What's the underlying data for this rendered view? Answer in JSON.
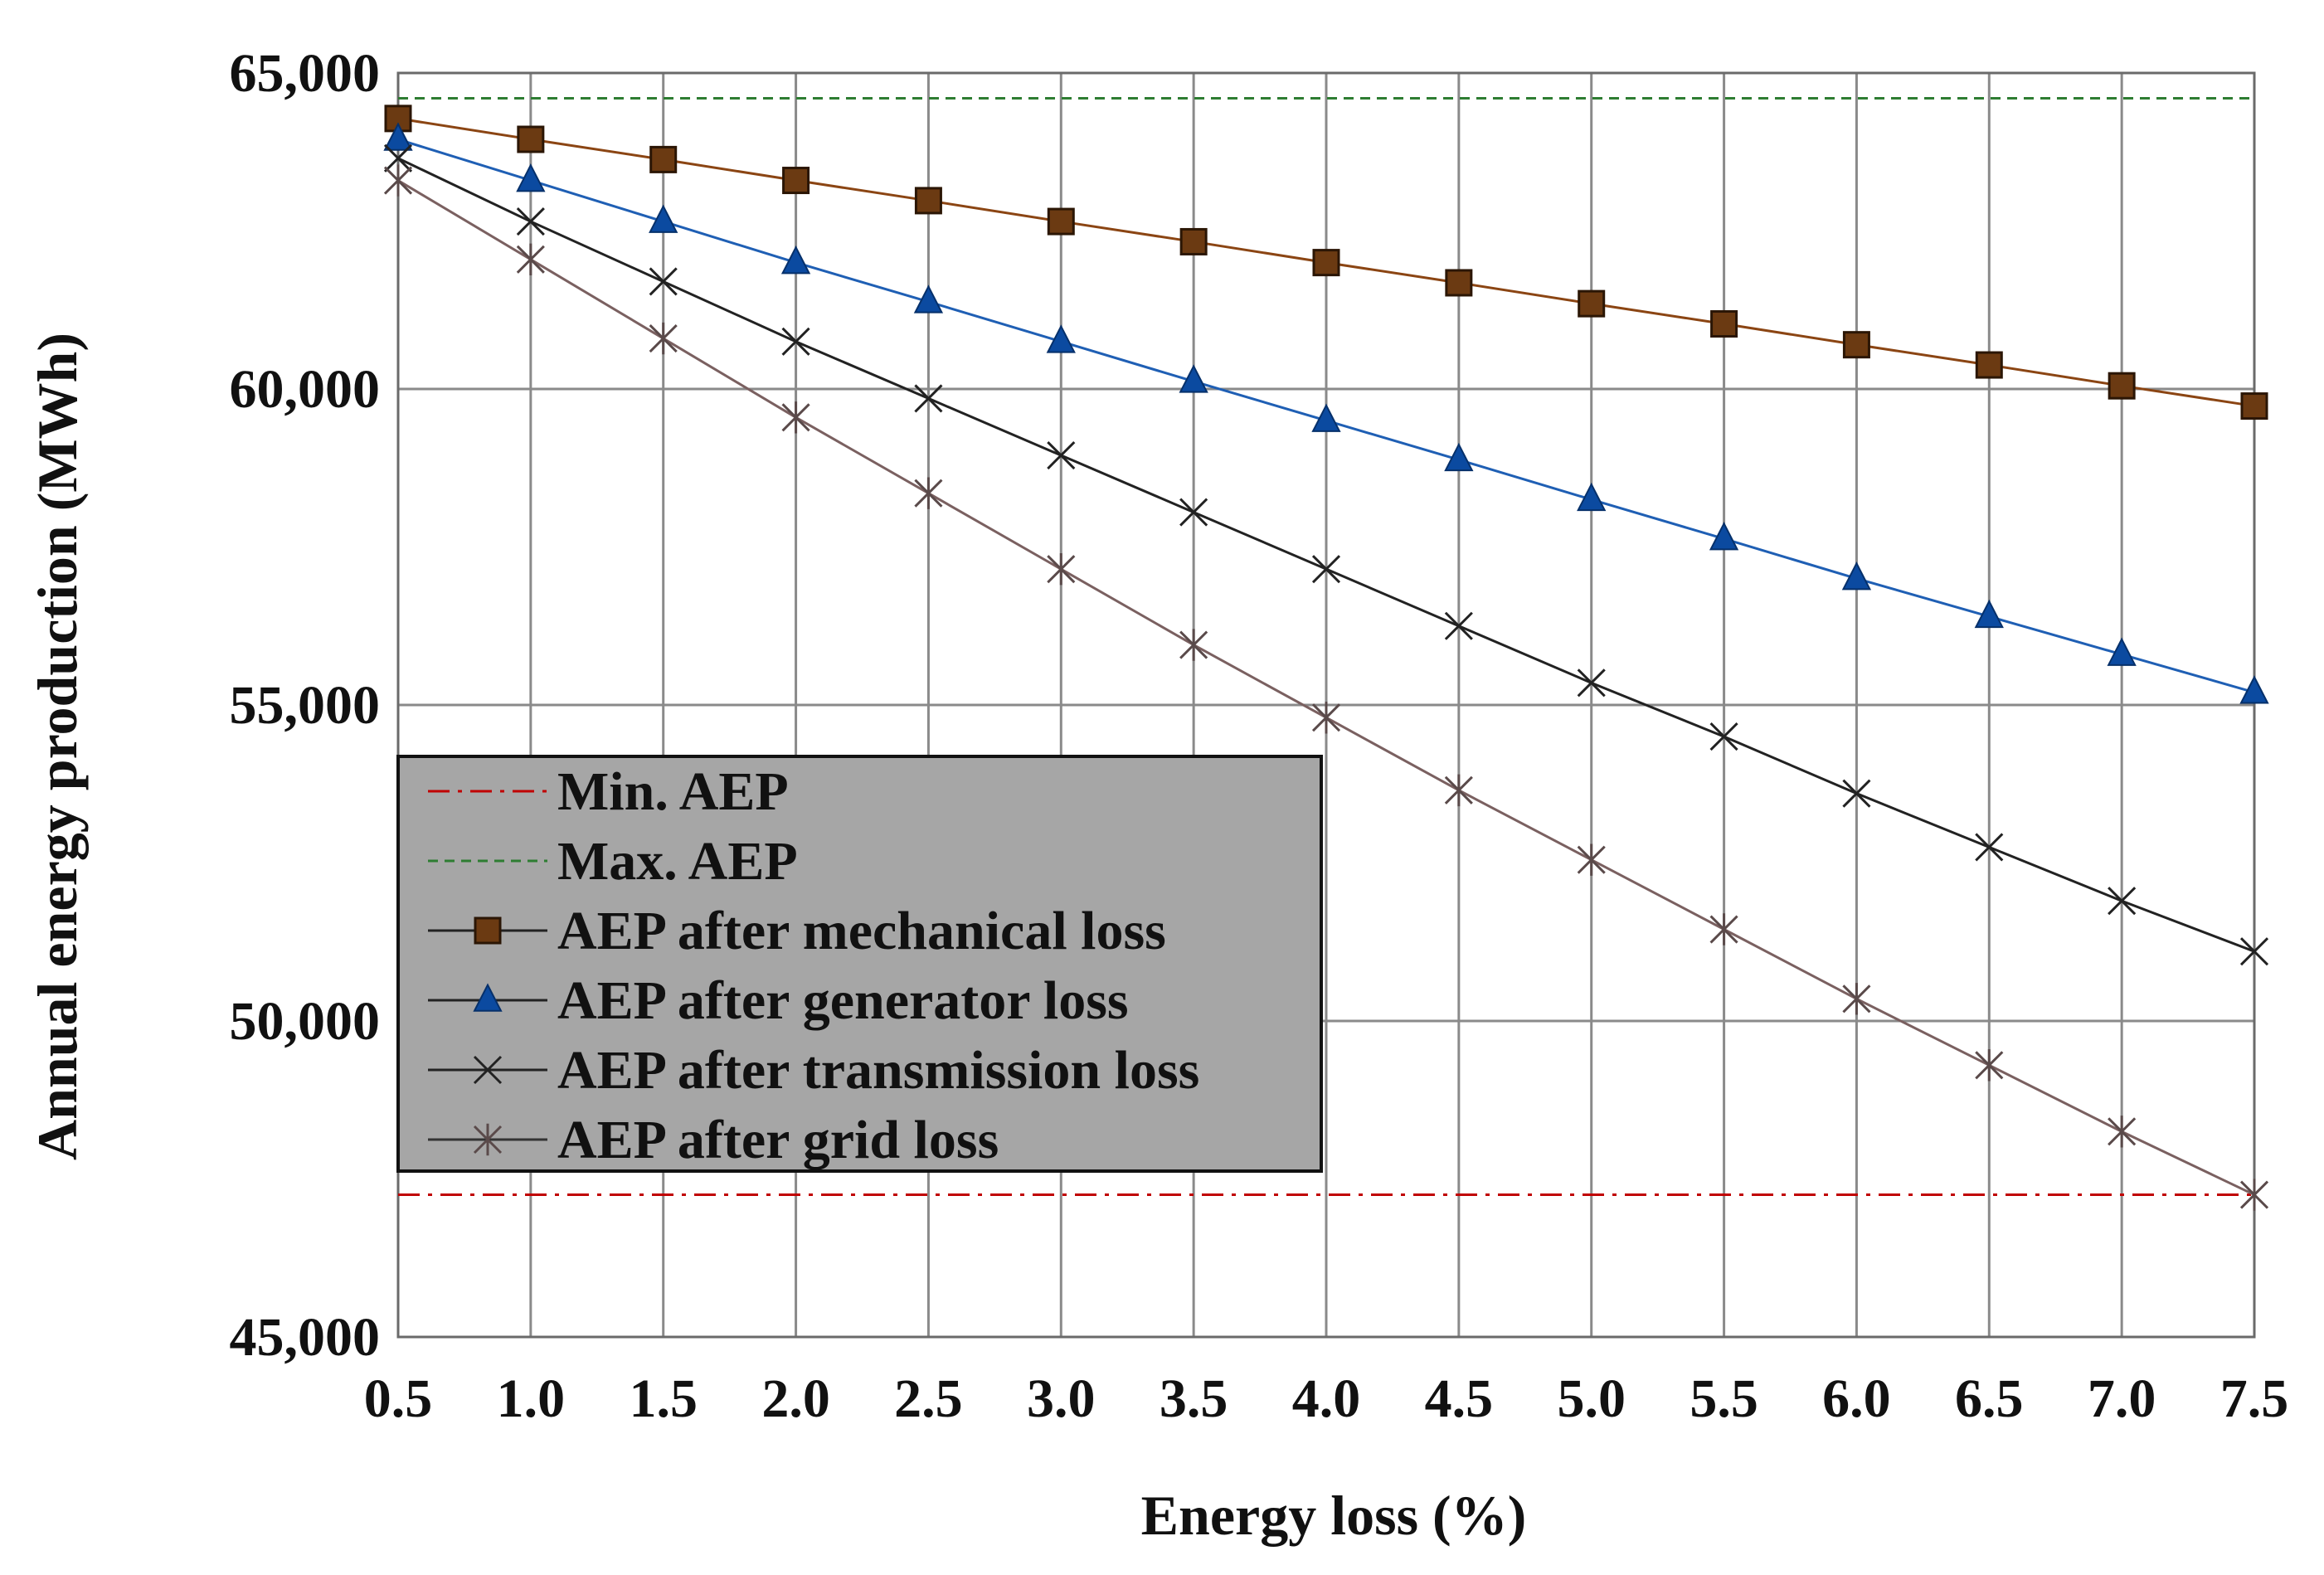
{
  "chart_data": {
    "type": "line",
    "title": "",
    "xlabel": "Energy loss (%)",
    "ylabel": "Annual energy production (MWh)",
    "x": [
      0.5,
      1.0,
      1.5,
      2.0,
      2.5,
      3.0,
      3.5,
      4.0,
      4.5,
      5.0,
      5.5,
      6.0,
      6.5,
      7.0,
      7.5
    ],
    "x_tick_labels": [
      "0.5",
      "1.0",
      "1.5",
      "2.0",
      "2.5",
      "3.0",
      "3.5",
      "4.0",
      "4.5",
      "5.0",
      "5.5",
      "6.0",
      "6.5",
      "7.0",
      "7.5"
    ],
    "ylim": [
      45000,
      65000
    ],
    "y_ticks": [
      45000,
      50000,
      55000,
      60000,
      65000
    ],
    "y_tick_labels": [
      "45,000",
      "50,000",
      "55,000",
      "60,000",
      "65,000"
    ],
    "grid": true,
    "legend_position": "lower-left",
    "series": [
      {
        "name": "Min. AEP",
        "style": "dash-dot",
        "marker": "none",
        "color": "#c00000",
        "values": [
          47250,
          47250,
          47250,
          47250,
          47250,
          47250,
          47250,
          47250,
          47250,
          47250,
          47250,
          47250,
          47250,
          47250,
          47250
        ]
      },
      {
        "name": "Max. AEP",
        "style": "dashed",
        "marker": "none",
        "color": "#2e7d32",
        "values": [
          64600,
          64600,
          64600,
          64600,
          64600,
          64600,
          64600,
          64600,
          64600,
          64600,
          64600,
          64600,
          64600,
          64600,
          64600
        ]
      },
      {
        "name": "AEP after mechanical loss",
        "style": "solid",
        "marker": "square",
        "color": "#8B4513",
        "marker_color": "#6b3a12",
        "values": [
          64280,
          63950,
          63630,
          63300,
          62980,
          62650,
          62330,
          62000,
          61680,
          61350,
          61030,
          60700,
          60380,
          60050,
          59730
        ]
      },
      {
        "name": "AEP after generator loss",
        "style": "solid",
        "marker": "triangle",
        "color": "#1f5fb4",
        "marker_color": "#0b4aa0",
        "values": [
          63950,
          63300,
          62650,
          62000,
          61380,
          60750,
          60120,
          59500,
          58880,
          58250,
          57630,
          57000,
          56400,
          55800,
          55200
        ]
      },
      {
        "name": "AEP after transmission loss",
        "style": "solid",
        "marker": "x",
        "color": "#222222",
        "marker_color": "#222222",
        "values": [
          63650,
          62650,
          61700,
          60750,
          59850,
          58950,
          58050,
          57150,
          56250,
          55350,
          54500,
          53600,
          52750,
          51900,
          51100
        ]
      },
      {
        "name": "AEP after grid loss",
        "style": "solid",
        "marker": "star",
        "color": "#7a6060",
        "marker_color": "#5a4a4a",
        "values": [
          63300,
          62050,
          60800,
          59550,
          58350,
          57150,
          55950,
          54800,
          53650,
          52550,
          51450,
          50350,
          49300,
          48250,
          47250
        ]
      }
    ]
  }
}
